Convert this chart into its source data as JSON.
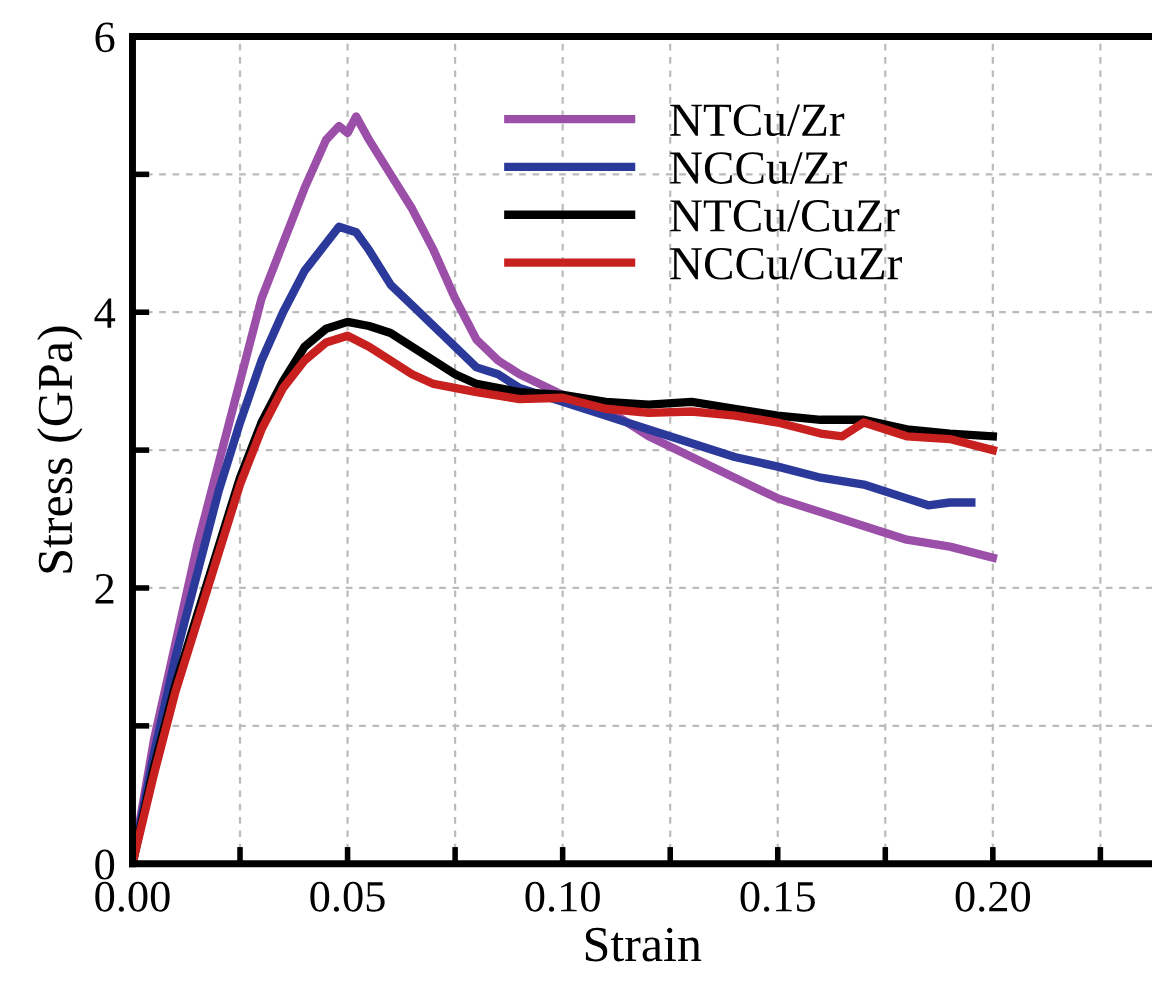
{
  "chart_data": {
    "type": "line",
    "xlabel": "Strain",
    "ylabel": "Stress (GPa)",
    "xlim": [
      0,
      0.237
    ],
    "ylim": [
      0,
      6
    ],
    "xticks": [
      {
        "value": 0,
        "label": "0.00"
      },
      {
        "value": 0.025,
        "label": null
      },
      {
        "value": 0.05,
        "label": "0.05"
      },
      {
        "value": 0.075,
        "label": null
      },
      {
        "value": 0.1,
        "label": "0.10"
      },
      {
        "value": 0.125,
        "label": null
      },
      {
        "value": 0.15,
        "label": "0.15"
      },
      {
        "value": 0.175,
        "label": null
      },
      {
        "value": 0.2,
        "label": "0.20"
      },
      {
        "value": 0.225,
        "label": null
      }
    ],
    "yticks": [
      0,
      {
        "value": 1,
        "label": null
      },
      2,
      {
        "value": 3,
        "label": null
      },
      4,
      {
        "value": 5,
        "label": null
      },
      6
    ],
    "grid": true,
    "legend": "top right",
    "marker": "none",
    "line_style": "solid",
    "series": [
      {
        "name": "NTCu/Zr",
        "color": "#9b4fa8",
        "x": [
          0,
          0.005,
          0.01,
          0.015,
          0.02,
          0.025,
          0.03,
          0.035,
          0.04,
          0.045,
          0.048,
          0.05,
          0.052,
          0.055,
          0.06,
          0.065,
          0.07,
          0.075,
          0.08,
          0.085,
          0.09,
          0.1,
          0.11,
          0.12,
          0.13,
          0.14,
          0.15,
          0.16,
          0.17,
          0.18,
          0.19,
          0.2
        ],
        "values": [
          0,
          0.9,
          1.6,
          2.3,
          2.9,
          3.5,
          4.1,
          4.5,
          4.9,
          5.25,
          5.35,
          5.3,
          5.42,
          5.25,
          5.0,
          4.75,
          4.45,
          4.1,
          3.8,
          3.65,
          3.55,
          3.4,
          3.3,
          3.1,
          2.95,
          2.8,
          2.65,
          2.55,
          2.45,
          2.35,
          2.3,
          2.22
        ]
      },
      {
        "name": "NCCu/Zr",
        "color": "#2b3a9a",
        "x": [
          0,
          0.005,
          0.01,
          0.015,
          0.02,
          0.025,
          0.03,
          0.035,
          0.04,
          0.045,
          0.048,
          0.052,
          0.055,
          0.06,
          0.065,
          0.07,
          0.075,
          0.08,
          0.085,
          0.09,
          0.1,
          0.11,
          0.12,
          0.13,
          0.14,
          0.15,
          0.16,
          0.17,
          0.18,
          0.185,
          0.19,
          0.195
        ],
        "values": [
          0,
          0.8,
          1.5,
          2.1,
          2.7,
          3.2,
          3.65,
          4.0,
          4.3,
          4.5,
          4.62,
          4.58,
          4.45,
          4.2,
          4.05,
          3.9,
          3.75,
          3.6,
          3.55,
          3.45,
          3.35,
          3.25,
          3.15,
          3.05,
          2.95,
          2.88,
          2.8,
          2.75,
          2.65,
          2.6,
          2.62,
          2.62
        ]
      },
      {
        "name": "NTCu/CuZr",
        "color": "#000000",
        "x": [
          0,
          0.005,
          0.01,
          0.015,
          0.02,
          0.025,
          0.03,
          0.035,
          0.04,
          0.045,
          0.05,
          0.055,
          0.06,
          0.065,
          0.07,
          0.075,
          0.08,
          0.09,
          0.1,
          0.11,
          0.12,
          0.13,
          0.14,
          0.15,
          0.16,
          0.17,
          0.18,
          0.19,
          0.2
        ],
        "values": [
          0,
          0.7,
          1.3,
          1.8,
          2.3,
          2.8,
          3.2,
          3.5,
          3.75,
          3.88,
          3.93,
          3.9,
          3.85,
          3.75,
          3.65,
          3.55,
          3.48,
          3.42,
          3.4,
          3.35,
          3.33,
          3.35,
          3.3,
          3.25,
          3.22,
          3.22,
          3.15,
          3.12,
          3.1
        ]
      },
      {
        "name": "NCCu/CuZr",
        "color": "#c8201f",
        "x": [
          0,
          0.005,
          0.01,
          0.015,
          0.02,
          0.025,
          0.03,
          0.035,
          0.04,
          0.045,
          0.05,
          0.055,
          0.06,
          0.065,
          0.07,
          0.08,
          0.09,
          0.1,
          0.11,
          0.12,
          0.13,
          0.14,
          0.15,
          0.16,
          0.165,
          0.17,
          0.18,
          0.19,
          0.2
        ],
        "values": [
          0,
          0.65,
          1.25,
          1.75,
          2.25,
          2.75,
          3.15,
          3.45,
          3.65,
          3.78,
          3.83,
          3.75,
          3.65,
          3.55,
          3.48,
          3.42,
          3.37,
          3.38,
          3.3,
          3.27,
          3.28,
          3.25,
          3.2,
          3.12,
          3.1,
          3.2,
          3.1,
          3.08,
          3.0
        ]
      }
    ]
  }
}
